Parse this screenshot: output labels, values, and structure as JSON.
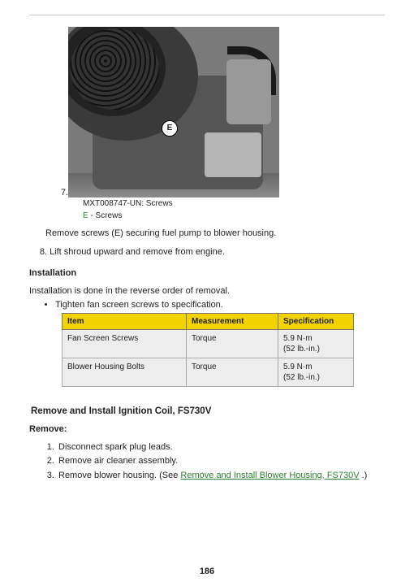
{
  "figure": {
    "callout_letter": "E",
    "list_number": "7.",
    "caption_code": "MXT008747-UN: Screws",
    "caption_key_letter": "E",
    "caption_key_text": " - Screws"
  },
  "step7_text": "Remove screws (E) securing fuel pump to blower housing.",
  "step8_number": "8.",
  "step8_text": "Lift shroud upward and remove from engine.",
  "installation_heading": "Installation",
  "installation_intro": "Installation is done in the reverse order of removal.",
  "installation_bullet": "Tighten fan screen screws to specification.",
  "table": {
    "header_bg": "#f2d300",
    "body_bg": "#ededed",
    "headers": {
      "item": "Item",
      "measurement": "Measurement",
      "spec": "Specification"
    },
    "rows": [
      {
        "item": "Fan Screen Screws",
        "measurement": "Torque",
        "spec": "5.9 N·m\n(52 lb.-in.)"
      },
      {
        "item": "Blower Housing Bolts",
        "measurement": "Torque",
        "spec": "5.9 N·m\n(52 lb.-in.)"
      }
    ]
  },
  "section2_heading": "Remove and Install Ignition Coil, FS730V",
  "remove_heading": "Remove:",
  "remove_steps": {
    "s1": "Disconnect spark plug leads.",
    "s2": "Remove air cleaner assembly.",
    "s3_prefix": "Remove blower housing. (See ",
    "s3_link": "Remove and Install Blower Housing, FS730V",
    "s3_suffix": " .)"
  },
  "page_number": "186"
}
